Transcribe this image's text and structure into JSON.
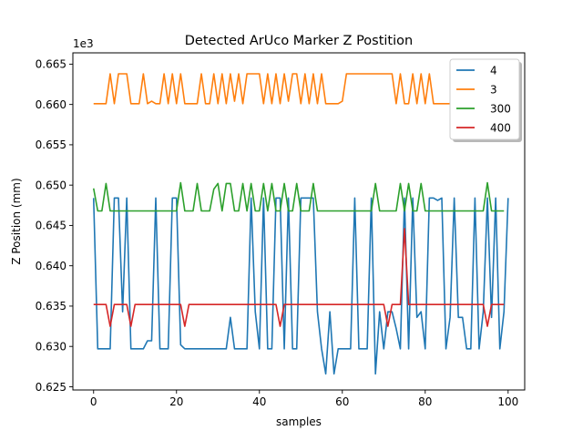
{
  "chart_data": {
    "type": "line",
    "title": "Detected ArUco Marker Z Postition",
    "xlabel": "samples",
    "ylabel": "Z Position (mm)",
    "offset_text": "1e3",
    "xlim": [
      -5,
      104
    ],
    "ylim": [
      0.6246,
      0.6664
    ],
    "x_ticks": [
      0,
      20,
      40,
      60,
      80,
      100
    ],
    "x_tick_labels": [
      "0",
      "20",
      "40",
      "60",
      "80",
      "100"
    ],
    "y_ticks": [
      0.625,
      0.63,
      0.635,
      0.64,
      0.645,
      0.65,
      0.655,
      0.66,
      0.665
    ],
    "y_tick_labels": [
      "0.625",
      "0.630",
      "0.635",
      "0.640",
      "0.645",
      "0.650",
      "0.655",
      "0.660",
      "0.665"
    ],
    "grid": false,
    "legend_position": "top-right",
    "series": [
      {
        "name": "4",
        "color": "#1f77b4",
        "values": [
          0.6484,
          0.6297,
          0.6297,
          0.6297,
          0.6297,
          0.6484,
          0.6484,
          0.6343,
          0.6484,
          0.6297,
          0.6297,
          0.6297,
          0.6297,
          0.6307,
          0.6307,
          0.6484,
          0.6297,
          0.6297,
          0.6297,
          0.6484,
          0.6484,
          0.6302,
          0.6297,
          0.6297,
          0.6297,
          0.6297,
          0.6297,
          0.6297,
          0.6297,
          0.6297,
          0.6297,
          0.6297,
          0.6297,
          0.6336,
          0.6297,
          0.6297,
          0.6297,
          0.6297,
          0.6484,
          0.6343,
          0.6297,
          0.6484,
          0.6297,
          0.6297,
          0.6484,
          0.6484,
          0.6297,
          0.6484,
          0.6297,
          0.6297,
          0.6484,
          0.6484,
          0.6484,
          0.6484,
          0.6343,
          0.6297,
          0.6266,
          0.6343,
          0.6266,
          0.6297,
          0.6297,
          0.6297,
          0.6297,
          0.6484,
          0.6297,
          0.6297,
          0.6297,
          0.6484,
          0.6266,
          0.6343,
          0.6297,
          0.6343,
          0.6343,
          0.6322,
          0.6297,
          0.6484,
          0.6297,
          0.6484,
          0.6336,
          0.6343,
          0.6297,
          0.6484,
          0.6484,
          0.6481,
          0.6484,
          0.6297,
          0.6336,
          0.6484,
          0.6336,
          0.6336,
          0.6297,
          0.6297,
          0.6484,
          0.6297,
          0.6343,
          0.6484,
          0.6336,
          0.6484,
          0.6297,
          0.6343,
          0.6484
        ]
      },
      {
        "name": "3",
        "color": "#ff7f0e",
        "values": [
          0.6601,
          0.6601,
          0.6601,
          0.6601,
          0.6638,
          0.6601,
          0.6638,
          0.6638,
          0.6638,
          0.6601,
          0.6601,
          0.6601,
          0.6638,
          0.6601,
          0.6604,
          0.6601,
          0.6601,
          0.6638,
          0.6601,
          0.6638,
          0.6601,
          0.6638,
          0.6601,
          0.6601,
          0.6601,
          0.6601,
          0.6638,
          0.6601,
          0.6601,
          0.6638,
          0.6601,
          0.6638,
          0.6601,
          0.6638,
          0.6604,
          0.6638,
          0.6601,
          0.6638,
          0.6638,
          0.6638,
          0.6638,
          0.6601,
          0.6638,
          0.6601,
          0.6638,
          0.6601,
          0.6638,
          0.6604,
          0.6638,
          0.6638,
          0.6601,
          0.6638,
          0.6601,
          0.6638,
          0.6601,
          0.6638,
          0.6601,
          0.6601,
          0.6601,
          0.6601,
          0.6604,
          0.6638,
          0.6638,
          0.6638,
          0.6638,
          0.6638,
          0.6638,
          0.6638,
          0.6638,
          0.6638,
          0.6638,
          0.6638,
          0.6638,
          0.6601,
          0.6638,
          0.6601,
          0.6601,
          0.6638,
          0.6601,
          0.6638,
          0.6601,
          0.6638,
          0.6601,
          0.6601,
          0.6601,
          0.6601,
          0.6601,
          0.6638,
          0.6601,
          0.6638,
          0.6601,
          0.6638,
          0.6601,
          0.6638,
          0.6601,
          0.6601,
          0.6601,
          0.6601,
          0.6601,
          0.6601
        ]
      },
      {
        "name": "300",
        "color": "#2ca02c",
        "values": [
          0.6496,
          0.6468,
          0.6468,
          0.6502,
          0.6468,
          0.6468,
          0.6468,
          0.6468,
          0.6468,
          0.6468,
          0.6468,
          0.6468,
          0.6468,
          0.6468,
          0.6468,
          0.6468,
          0.6468,
          0.6468,
          0.6468,
          0.6468,
          0.6468,
          0.6503,
          0.6468,
          0.6468,
          0.6468,
          0.6502,
          0.6468,
          0.6468,
          0.6468,
          0.6495,
          0.6502,
          0.6468,
          0.6502,
          0.6502,
          0.6468,
          0.6468,
          0.6502,
          0.6468,
          0.6502,
          0.6468,
          0.6468,
          0.6502,
          0.6468,
          0.6502,
          0.6468,
          0.6468,
          0.6502,
          0.6468,
          0.6468,
          0.6502,
          0.6468,
          0.6468,
          0.6468,
          0.6502,
          0.6468,
          0.6468,
          0.6468,
          0.6468,
          0.6468,
          0.6468,
          0.6468,
          0.6468,
          0.6468,
          0.6468,
          0.6468,
          0.6468,
          0.6468,
          0.6468,
          0.6502,
          0.6468,
          0.6468,
          0.6468,
          0.6468,
          0.6468,
          0.6502,
          0.6468,
          0.6502,
          0.6468,
          0.6468,
          0.6502,
          0.6468,
          0.6468,
          0.6468,
          0.6468,
          0.6468,
          0.6468,
          0.6468,
          0.6468,
          0.6468,
          0.6468,
          0.6468,
          0.6468,
          0.6468,
          0.6468,
          0.6468,
          0.6503,
          0.6468,
          0.6468,
          0.6468,
          0.6468
        ]
      },
      {
        "name": "400",
        "color": "#d62728",
        "values": [
          0.6352,
          0.6352,
          0.6352,
          0.6352,
          0.6325,
          0.6352,
          0.6352,
          0.6352,
          0.6352,
          0.6325,
          0.6352,
          0.6352,
          0.6352,
          0.6352,
          0.6352,
          0.6352,
          0.6352,
          0.6352,
          0.6352,
          0.6352,
          0.6352,
          0.6352,
          0.6325,
          0.6352,
          0.6352,
          0.6352,
          0.6352,
          0.6352,
          0.6352,
          0.6352,
          0.6352,
          0.6352,
          0.6352,
          0.6352,
          0.6352,
          0.6352,
          0.6352,
          0.6352,
          0.6352,
          0.6352,
          0.6352,
          0.6352,
          0.6352,
          0.6352,
          0.6352,
          0.6325,
          0.6352,
          0.6352,
          0.6352,
          0.6352,
          0.6352,
          0.6352,
          0.6352,
          0.6352,
          0.6352,
          0.6352,
          0.6352,
          0.6352,
          0.6352,
          0.6352,
          0.6352,
          0.6352,
          0.6352,
          0.6352,
          0.6352,
          0.6352,
          0.6352,
          0.6352,
          0.6352,
          0.6352,
          0.6352,
          0.6325,
          0.6352,
          0.6352,
          0.6352,
          0.6446,
          0.6352,
          0.6352,
          0.6352,
          0.6352,
          0.6352,
          0.6352,
          0.6352,
          0.6352,
          0.6352,
          0.6352,
          0.6352,
          0.6352,
          0.6352,
          0.6352,
          0.6352,
          0.6352,
          0.6352,
          0.6352,
          0.6352,
          0.6325,
          0.6352,
          0.6352,
          0.6352,
          0.6352
        ]
      }
    ]
  }
}
